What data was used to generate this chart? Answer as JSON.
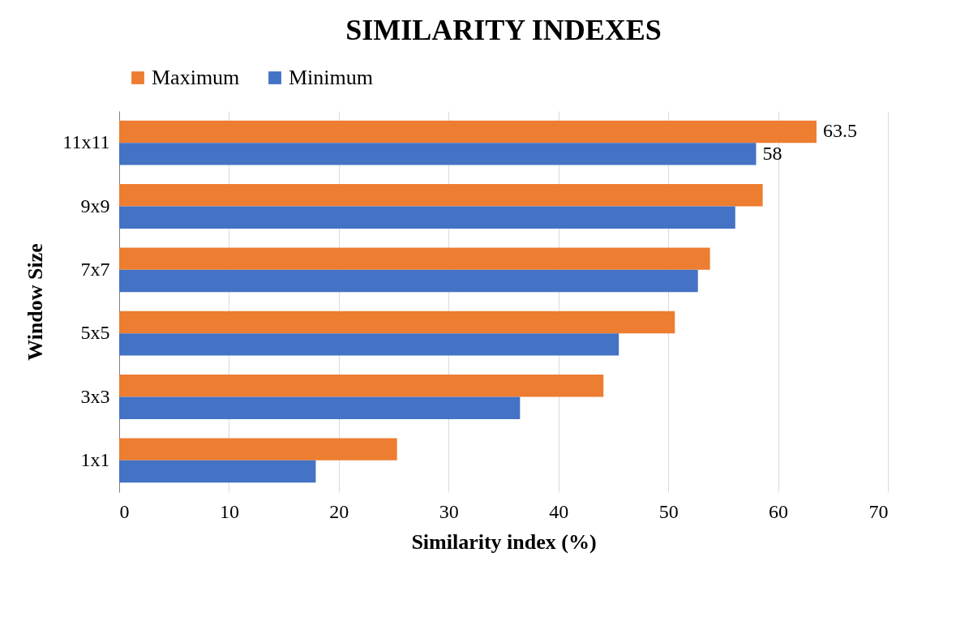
{
  "chart_data": {
    "type": "bar",
    "orientation": "horizontal",
    "title": "SIMILARITY INDEXES",
    "xlabel": "Similarity index (%)",
    "ylabel": "Window Size",
    "categories": [
      "11x11",
      "9x9",
      "7x7",
      "5x5",
      "3x3",
      "1x1"
    ],
    "series": [
      {
        "name": "Maximum",
        "color": "#ed7d31",
        "values": [
          63.5,
          58.6,
          53.8,
          50.6,
          44.1,
          25.3
        ],
        "value_labels": [
          "63.5",
          null,
          null,
          null,
          null,
          null
        ]
      },
      {
        "name": "Minimum",
        "color": "#4472c4",
        "values": [
          58,
          56.1,
          52.7,
          45.5,
          36.5,
          17.9
        ],
        "value_labels": [
          "58",
          null,
          null,
          null,
          null,
          null
        ]
      }
    ],
    "xlim": [
      0,
      70
    ],
    "xticks": [
      0,
      10,
      20,
      30,
      40,
      50,
      60,
      70
    ],
    "grid": "x",
    "legend": "top"
  }
}
